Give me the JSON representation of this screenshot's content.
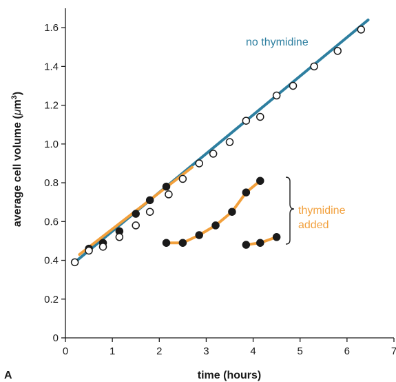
{
  "chart_data": {
    "type": "scatter",
    "panel_label": "A",
    "xlabel": "time (hours)",
    "ylabel": "average cell volume (μm³)",
    "ylabel_parts": {
      "main": "average cell volume (",
      "mu": "μ",
      "unit": "m",
      "sup": "3",
      "close": ")"
    },
    "xlim": [
      0,
      7
    ],
    "ylim": [
      0,
      1.7
    ],
    "x_ticks": [
      0,
      1,
      2,
      3,
      4,
      5,
      6,
      7
    ],
    "x_tick_labels": [
      "0",
      "1",
      "2",
      "3",
      "4",
      "5",
      "6",
      "7"
    ],
    "y_ticks": [
      0,
      0.2,
      0.4,
      0.6,
      0.8,
      1.0,
      1.2,
      1.4,
      1.6
    ],
    "y_tick_labels": [
      "0",
      "0.2",
      "0.4",
      "0.6",
      "0.8",
      "1.0",
      "1.2",
      "1.4",
      "1.6"
    ],
    "grid": false,
    "colors": {
      "control": "#2e7fa0",
      "treated": "#f2a03c",
      "axis": "#1a1a1a"
    },
    "series": [
      {
        "name": "no thymidine",
        "marker": "open-circle",
        "fit_line": [
          [
            0.2,
            0.39
          ],
          [
            6.45,
            1.64
          ]
        ],
        "x": [
          0.2,
          0.5,
          0.8,
          1.15,
          1.5,
          1.8,
          2.2,
          2.5,
          2.85,
          3.15,
          3.5,
          3.85,
          4.15,
          4.5,
          4.85,
          5.3,
          5.8,
          6.3
        ],
        "y": [
          0.39,
          0.45,
          0.47,
          0.52,
          0.58,
          0.65,
          0.74,
          0.82,
          0.9,
          0.95,
          1.01,
          1.12,
          1.14,
          1.25,
          1.3,
          1.4,
          1.48,
          1.59
        ]
      },
      {
        "name": "thymidine added",
        "label_lines": [
          "thymidine",
          "added"
        ],
        "marker": "filled-circle",
        "fit_line": [
          [
            0.3,
            0.43
          ],
          [
            2.7,
            0.88
          ]
        ],
        "x": [
          0.5,
          0.8,
          1.15,
          1.5,
          1.8,
          2.15
        ],
        "y": [
          0.46,
          0.49,
          0.55,
          0.64,
          0.71,
          0.78
        ]
      },
      {
        "name": "thymidine added",
        "marker": "filled-circle",
        "fit_line": [
          [
            2.15,
            0.49
          ],
          [
            2.5,
            0.49
          ],
          [
            2.85,
            0.53
          ],
          [
            3.2,
            0.58
          ],
          [
            3.55,
            0.65
          ],
          [
            3.85,
            0.75
          ],
          [
            4.15,
            0.81
          ]
        ],
        "x": [
          2.15,
          2.5,
          2.85,
          3.2,
          3.55,
          3.85,
          4.15
        ],
        "y": [
          0.49,
          0.49,
          0.53,
          0.58,
          0.65,
          0.75,
          0.81
        ]
      },
      {
        "name": "thymidine added",
        "marker": "filled-circle",
        "fit_line": [
          [
            3.85,
            0.48
          ],
          [
            4.15,
            0.49
          ],
          [
            4.5,
            0.52
          ]
        ],
        "x": [
          3.85,
          4.15,
          4.5
        ],
        "y": [
          0.48,
          0.49,
          0.52
        ]
      }
    ],
    "annotations": [
      {
        "text": "no thymidine",
        "color": "control"
      },
      {
        "text_lines": [
          "thymidine",
          "added"
        ],
        "color": "treated",
        "bracket": true
      }
    ]
  }
}
